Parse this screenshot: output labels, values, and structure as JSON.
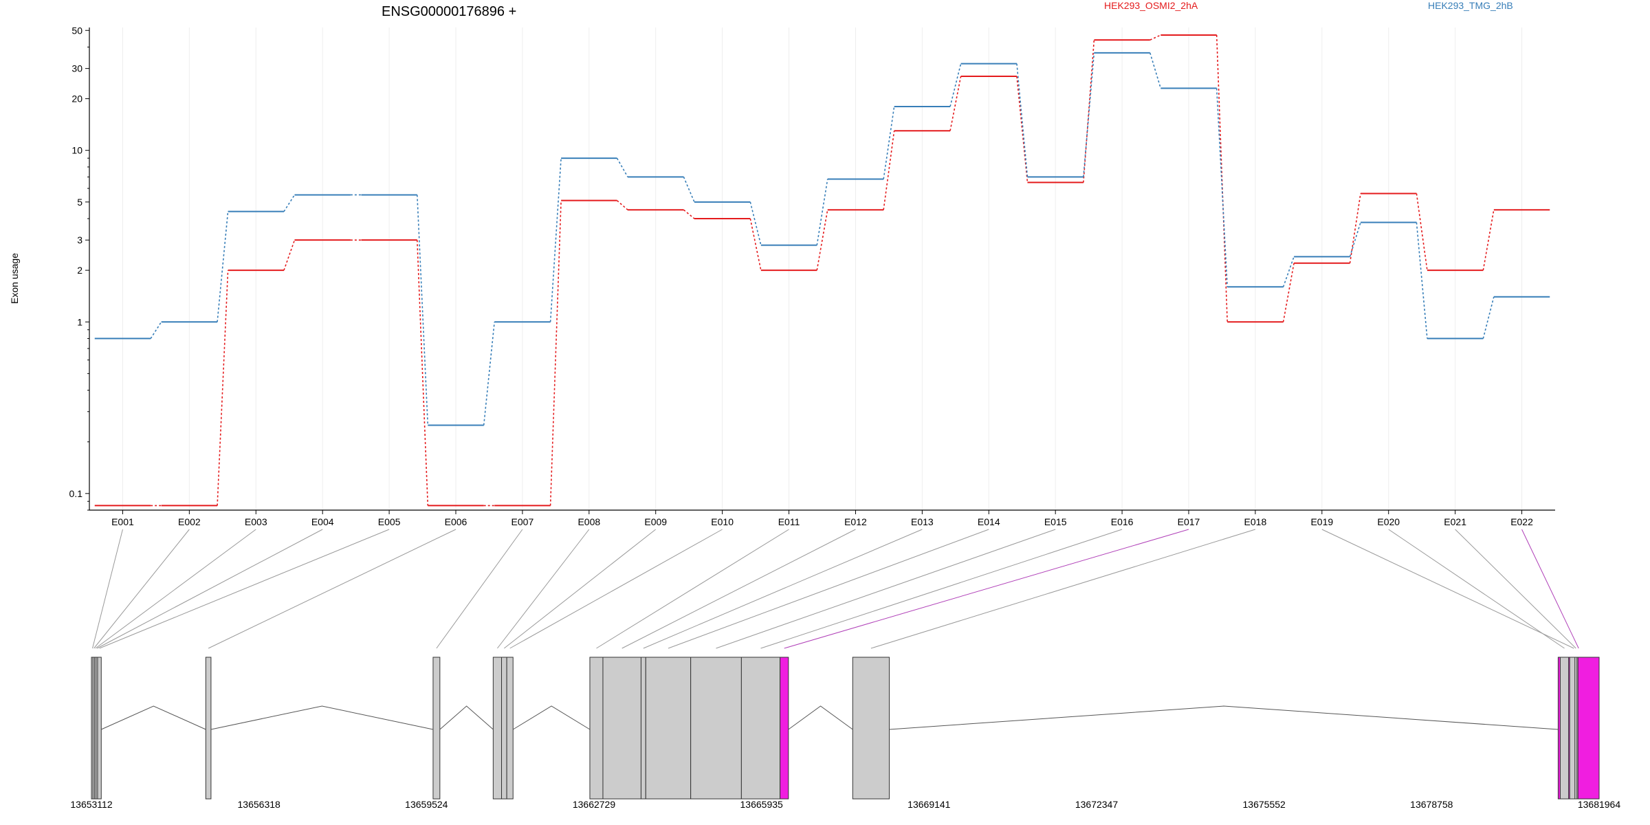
{
  "colors": {
    "series_a": "#e41a1c",
    "series_b": "#377eb8",
    "highlight": "#f01ee0",
    "exon_fill": "#cccccc",
    "axis": "#000000"
  },
  "chart_data": {
    "type": "line",
    "title": "ENSG00000176896 +",
    "ylabel": "Exon usage",
    "xlabel": "",
    "y_scale": "log",
    "ylim": [
      0.08,
      52
    ],
    "y_ticks": [
      0.1,
      1,
      2,
      3,
      5,
      10,
      20,
      30,
      50
    ],
    "y_tick_labels": [
      "0.1",
      "1",
      "2",
      "3",
      "5",
      "10",
      "20",
      "30",
      "50"
    ],
    "grid": "vertical lines at each exon",
    "legend_position": "top",
    "categories": [
      "E001",
      "E002",
      "E003",
      "E004",
      "E005",
      "E006",
      "E007",
      "E008",
      "E009",
      "E010",
      "E011",
      "E012",
      "E013",
      "E014",
      "E015",
      "E016",
      "E017",
      "E018",
      "E019",
      "E020",
      "E021",
      "E022"
    ],
    "series": [
      {
        "name": "HEK293_OSMI2_2hA",
        "color": "#e41a1c",
        "values": [
          0.085,
          0.085,
          2.0,
          3.0,
          3.0,
          0.085,
          0.085,
          5.1,
          4.5,
          4.0,
          2.0,
          4.5,
          13.0,
          27.0,
          6.5,
          44.0,
          47.0,
          1.0,
          2.2,
          5.6,
          2.0,
          4.5
        ]
      },
      {
        "name": "HEK293_TMG_2hB",
        "color": "#377eb8",
        "values": [
          0.8,
          1.0,
          4.4,
          5.5,
          5.5,
          0.25,
          1.0,
          9.0,
          7.0,
          5.0,
          2.8,
          6.8,
          18.0,
          32.0,
          7.0,
          37.0,
          23.0,
          1.6,
          2.4,
          3.8,
          0.8,
          1.4
        ]
      }
    ],
    "highlighted_exons": [
      "E017",
      "E022"
    ]
  },
  "gene_model": {
    "coordinate_range": [
      13653112,
      13681964
    ],
    "coordinate_ticks": [
      "13653112",
      "13656318",
      "13659524",
      "13662729",
      "13665935",
      "13669141",
      "13672347",
      "13675552",
      "13678758",
      "13681964"
    ],
    "exons": [
      {
        "id": "E001",
        "start": 13653112,
        "end": 13653140
      },
      {
        "id": "E002",
        "start": 13653140,
        "end": 13653170
      },
      {
        "id": "E003",
        "start": 13653170,
        "end": 13653200
      },
      {
        "id": "E004",
        "start": 13653200,
        "end": 13653230
      },
      {
        "id": "E005",
        "start": 13653230,
        "end": 13653300
      },
      {
        "id": "E006",
        "start": 13655300,
        "end": 13655400
      },
      {
        "id": "E007",
        "start": 13659650,
        "end": 13659780
      },
      {
        "id": "E008",
        "start": 13660800,
        "end": 13660960
      },
      {
        "id": "E009",
        "start": 13660960,
        "end": 13661060
      },
      {
        "id": "E010",
        "start": 13661060,
        "end": 13661180
      },
      {
        "id": "E011",
        "start": 13662650,
        "end": 13662900
      },
      {
        "id": "E012",
        "start": 13662900,
        "end": 13663630
      },
      {
        "id": "E013",
        "start": 13663630,
        "end": 13663720
      },
      {
        "id": "E014",
        "start": 13663720,
        "end": 13664580
      },
      {
        "id": "E015",
        "start": 13664580,
        "end": 13665550
      },
      {
        "id": "E016",
        "start": 13665550,
        "end": 13666290
      },
      {
        "id": "E017",
        "start": 13666290,
        "end": 13666450
      },
      {
        "id": "E018",
        "start": 13667680,
        "end": 13668380
      },
      {
        "id": "E019",
        "start": 13681400,
        "end": 13681560
      },
      {
        "id": "E020",
        "start": 13681220,
        "end": 13681380
      },
      {
        "id": "E021",
        "start": 13681500,
        "end": 13681540
      },
      {
        "id": "E022",
        "start": 13681180,
        "end": 13681964
      }
    ]
  }
}
